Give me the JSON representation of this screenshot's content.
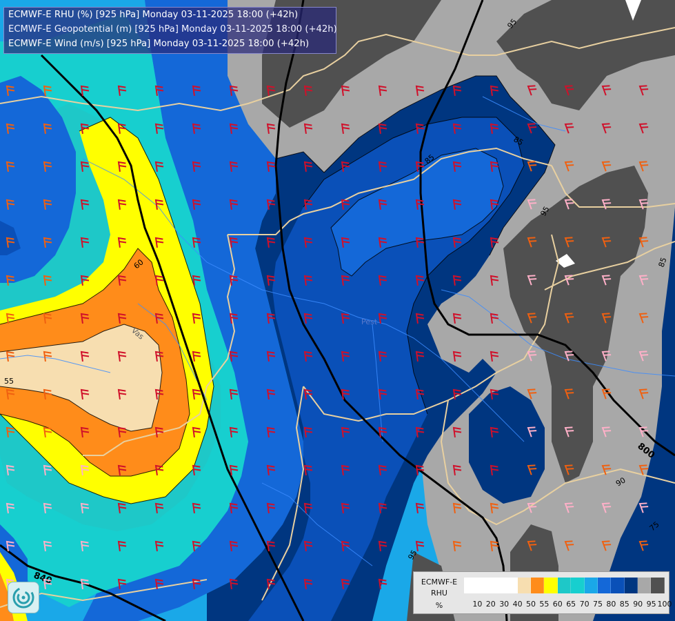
{
  "titles": {
    "rhu": "ECMWF-E RHU (%) [925 hPa] Monday 03-11-2025 18:00 (+42h)",
    "geopotential": "ECMWF-E Geopotential (m) [925 hPa] Monday 03-11-2025 18:00 (+42h)",
    "wind": "ECMWF-E Wind (m/s) [925 hPa] Monday 03-11-2025 18:00 (+42h)"
  },
  "legend": {
    "line1": "ECMWF-E",
    "line2": "RHU",
    "unit": "%",
    "levels": [
      "10",
      "20",
      "30",
      "40",
      "50",
      "55",
      "60",
      "65",
      "70",
      "75",
      "80",
      "85",
      "90",
      "95",
      "100"
    ],
    "colors": [
      "#ffffff",
      "#ffffff",
      "#ffffff",
      "#ffffff",
      "#f7deb0",
      "#ff8c1a",
      "#ffff00",
      "#1ec8c8",
      "#17cfcf",
      "#1aa8e8",
      "#1468d8",
      "#0a50b8",
      "#003680",
      "#a8a8a8",
      "#505050"
    ]
  },
  "contour_labels": {
    "geo_840": "840",
    "geo_800": "800",
    "rh_55": "55",
    "rh_60": "60",
    "rh_75": "75",
    "rh_85a": "85",
    "rh_85b": "85",
    "rh_85c": "85",
    "rh_90": "90",
    "rh_95a": "95",
    "rh_95b": "95",
    "rh_95c": "95",
    "place_vas": "Vas",
    "place_pest": "Pest"
  },
  "colors": {
    "wind_red": "#d0102a",
    "wind_orange": "#f06010",
    "wind_pink": "#ffb0c8",
    "border_tan": "#e8d0a0",
    "river_blue": "#3c8cff"
  },
  "icons": {
    "logo": "ecmwf-swirl-logo"
  }
}
